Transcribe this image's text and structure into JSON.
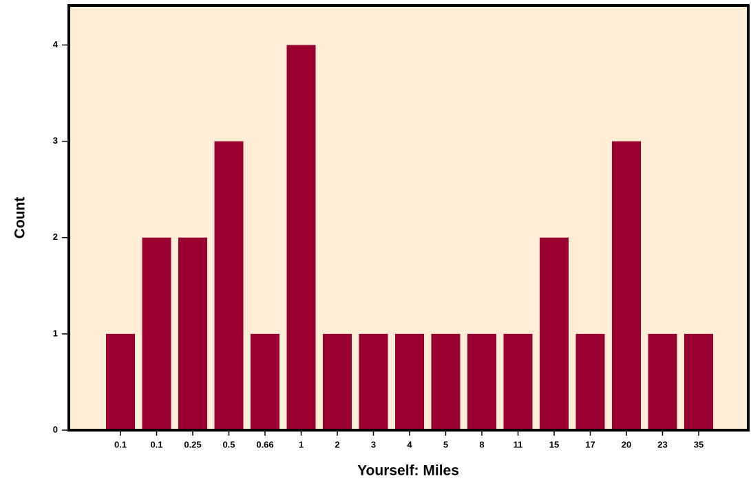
{
  "chart_data": {
    "type": "bar",
    "x_label": "Yourself: Miles",
    "y_label": "Count",
    "categories": [
      "0.1",
      "0.1",
      "0.25",
      "0.5",
      "0.66",
      "1",
      "2",
      "3",
      "4",
      "5",
      "8",
      "11",
      "15",
      "17",
      "20",
      "23",
      "35"
    ],
    "values": [
      1,
      2,
      2,
      3,
      1,
      4,
      1,
      1,
      1,
      1,
      1,
      1,
      2,
      1,
      3,
      1,
      1
    ],
    "color": "#990030",
    "background": "#feeed6",
    "ylim": [
      0,
      4.41
    ],
    "yticks": [
      0,
      1,
      2,
      3,
      4
    ]
  }
}
